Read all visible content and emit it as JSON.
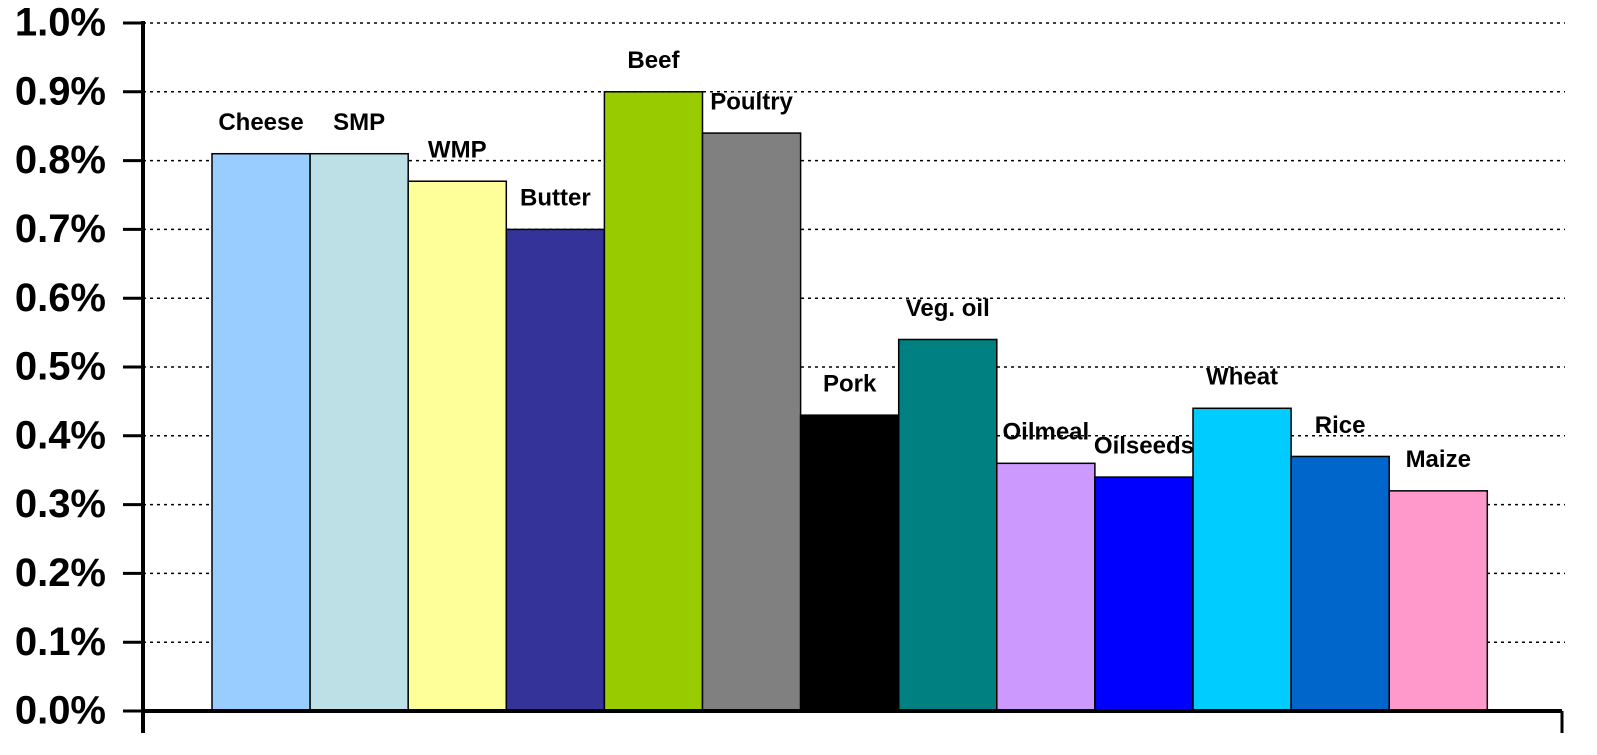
{
  "chart_data": {
    "type": "bar",
    "categories": [
      "Cheese",
      "SMP",
      "WMP",
      "Butter",
      "Beef",
      "Poultry",
      "Pork",
      "Veg. oil",
      "Oilmeal",
      "Oilseeds",
      "Wheat",
      "Rice",
      "Maize"
    ],
    "values": [
      0.81,
      0.81,
      0.77,
      0.7,
      0.9,
      0.84,
      0.43,
      0.54,
      0.36,
      0.34,
      0.44,
      0.37,
      0.32
    ],
    "colors": [
      "#99ccff",
      "#bde0e6",
      "#ffff99",
      "#333399",
      "#99cc00",
      "#808080",
      "#000000",
      "#008080",
      "#cc99ff",
      "#0000ff",
      "#00ccff",
      "#0066cc",
      "#ff99cc"
    ],
    "ylim": [
      0,
      1.0
    ],
    "yticks": [
      {
        "value": 0,
        "label": "0.0%"
      },
      {
        "value": 0.1,
        "label": "0.1%"
      },
      {
        "value": 0.2,
        "label": "0.2%"
      },
      {
        "value": 0.3,
        "label": "0.3%"
      },
      {
        "value": 0.4,
        "label": "0.4%"
      },
      {
        "value": 0.5,
        "label": "0.5%"
      },
      {
        "value": 0.6,
        "label": "0.6%"
      },
      {
        "value": 0.7,
        "label": "0.7%"
      },
      {
        "value": 0.8,
        "label": "0.8%"
      },
      {
        "value": 0.9,
        "label": "0.9%"
      },
      {
        "value": 1.0,
        "label": "1.0%"
      }
    ],
    "grid": true
  }
}
